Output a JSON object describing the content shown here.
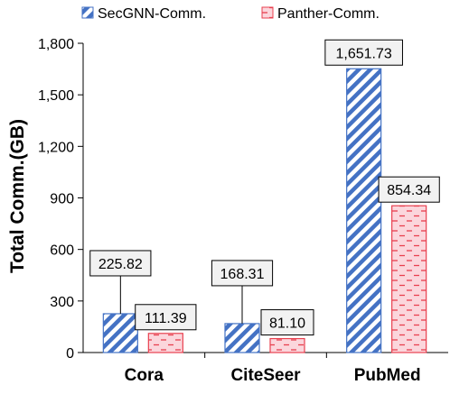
{
  "chart_data": {
    "type": "bar",
    "categories": [
      "Cora",
      "CiteSeer",
      "PubMed"
    ],
    "series": [
      {
        "name": "SecGNN-Comm.",
        "values": [
          225.82,
          168.31,
          1651.73
        ],
        "labels": [
          "225.82",
          "168.31",
          "1,651.73"
        ],
        "color": "#4472c4",
        "pattern": "diagonal-stripes"
      },
      {
        "name": "Panther-Comm.",
        "values": [
          111.39,
          81.1,
          854.34
        ],
        "labels": [
          "111.39",
          "81.10",
          "854.34"
        ],
        "color": "#e8404f",
        "pattern": "dashed-horizontal"
      }
    ],
    "ylabel": "Total Comm.(GB)",
    "xlabel": "",
    "ylim": [
      0,
      1800
    ],
    "yticks": [
      0,
      300,
      600,
      900,
      1200,
      1500,
      1800
    ],
    "ytick_labels": [
      "0",
      "300",
      "600",
      "900",
      "1,200",
      "1,500",
      "1,800"
    ],
    "legend_position": "top",
    "grid": false
  }
}
